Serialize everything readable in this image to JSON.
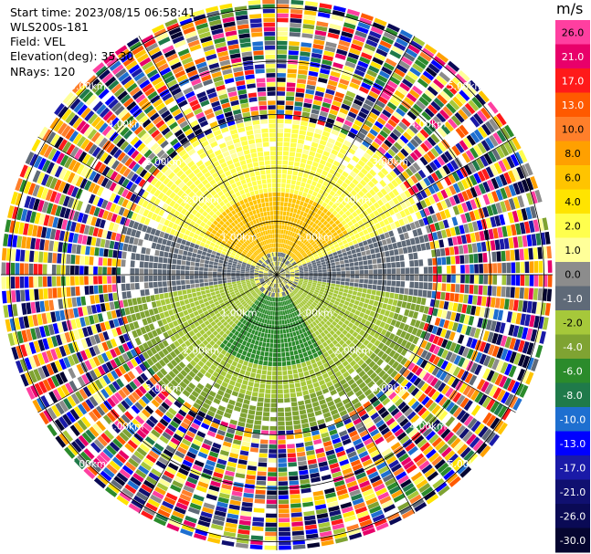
{
  "header": {
    "start_time": "Start time: 2023/08/15 06:58:41",
    "instrument": "WLS200s-181",
    "field": "Field: VEL",
    "elevation": "Elevation(deg): 35.30",
    "nrays": "NRays: 120"
  },
  "colorbar": {
    "unit": "m/s",
    "bins": [
      {
        "label": "26.0",
        "color": "#ff3fa0"
      },
      {
        "label": "21.0",
        "color": "#e8006a"
      },
      {
        "label": "17.0",
        "color": "#ff1a1a"
      },
      {
        "label": "13.0",
        "color": "#ff5a00"
      },
      {
        "label": "10.0",
        "color": "#ff7f2a"
      },
      {
        "label": "8.0",
        "color": "#ffa000"
      },
      {
        "label": "6.0",
        "color": "#ffc400"
      },
      {
        "label": "4.0",
        "color": "#ffe400"
      },
      {
        "label": "2.0",
        "color": "#ffff4d"
      },
      {
        "label": "1.0",
        "color": "#ffff99"
      },
      {
        "label": "0.0",
        "color": "#8c8c8c"
      },
      {
        "label": "-1.0",
        "color": "#5f6a78"
      },
      {
        "label": "-2.0",
        "color": "#a6c83a"
      },
      {
        "label": "-4.0",
        "color": "#7fa332"
      },
      {
        "label": "-6.0",
        "color": "#2b8b2b"
      },
      {
        "label": "-8.0",
        "color": "#1f7a4a"
      },
      {
        "label": "-10.0",
        "color": "#1e6fd0"
      },
      {
        "label": "-13.0",
        "color": "#0000ff"
      },
      {
        "label": "-17.0",
        "color": "#1a1aa8"
      },
      {
        "label": "-21.0",
        "color": "#101070"
      },
      {
        "label": "-26.0",
        "color": "#0a0a55"
      },
      {
        "label": "-30.0",
        "color": "#050530"
      }
    ]
  },
  "range_rings": [
    "1.00km",
    "2.00km",
    "3.00km",
    "4.00km",
    "5.00km"
  ]
}
